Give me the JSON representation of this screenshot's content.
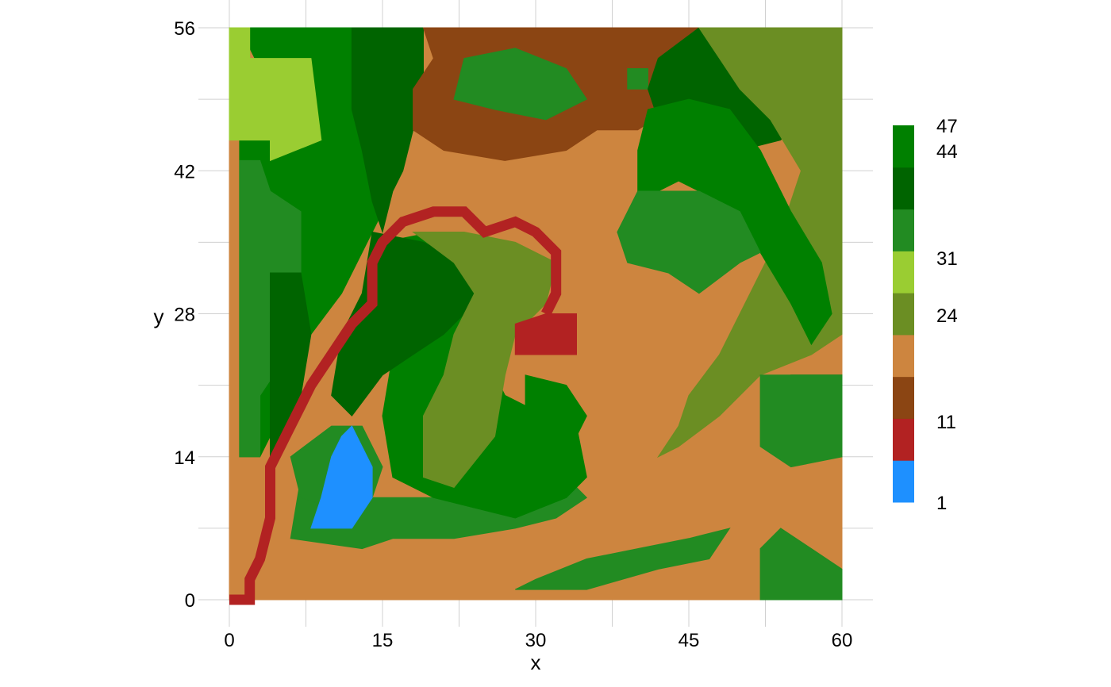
{
  "chart_data": {
    "type": "heatmap",
    "title": "",
    "xlabel": "x",
    "ylabel": "y",
    "xlim": [
      0,
      60
    ],
    "ylim": [
      0,
      56
    ],
    "x_ticks": [
      "0",
      "15",
      "30",
      "45",
      "60"
    ],
    "y_ticks": [
      "0",
      "14",
      "28",
      "42",
      "56"
    ],
    "grid": true,
    "legend_position": "right",
    "colorbar": {
      "tick_labels": [
        "1",
        "11",
        "24",
        "31",
        "44",
        "47"
      ],
      "bands": [
        {
          "color": "#1E90FF"
        },
        {
          "color": "#B22222"
        },
        {
          "color": "#8B4513"
        },
        {
          "color": "#CD853F"
        },
        {
          "color": "#6B8E23"
        },
        {
          "color": "#9ACD32"
        },
        {
          "color": "#228B22"
        },
        {
          "color": "#006400"
        },
        {
          "color": "#008000"
        }
      ]
    },
    "regions": [
      {
        "name": "farmland",
        "color": "#CD853F",
        "points": [
          [
            0,
            0
          ],
          [
            60,
            0
          ],
          [
            60,
            56
          ],
          [
            0,
            56
          ]
        ]
      },
      {
        "name": "forest-northwest",
        "color": "#008000",
        "points": [
          [
            1,
            56
          ],
          [
            19,
            56
          ],
          [
            18,
            48
          ],
          [
            15,
            38
          ],
          [
            11,
            30
          ],
          [
            8,
            26
          ],
          [
            5,
            20
          ],
          [
            4,
            16
          ],
          [
            3,
            14
          ],
          [
            1,
            14
          ],
          [
            1,
            45
          ],
          [
            4,
            50
          ]
        ]
      },
      {
        "name": "meadow-northwest",
        "color": "#9ACD32",
        "points": [
          [
            0,
            56
          ],
          [
            2,
            56
          ],
          [
            2,
            53
          ],
          [
            8,
            53
          ],
          [
            9,
            45
          ],
          [
            4,
            43
          ],
          [
            4,
            45
          ],
          [
            0,
            45
          ]
        ]
      },
      {
        "name": "woodland-west",
        "color": "#228B22",
        "points": [
          [
            1,
            43
          ],
          [
            3,
            43
          ],
          [
            4,
            40
          ],
          [
            7,
            38
          ],
          [
            7,
            30
          ],
          [
            6,
            28
          ],
          [
            5,
            23
          ],
          [
            3,
            20
          ],
          [
            3,
            14
          ],
          [
            1,
            14
          ],
          [
            1,
            28
          ]
        ]
      },
      {
        "name": "dense-forest-north",
        "color": "#006400",
        "points": [
          [
            12,
            56
          ],
          [
            19,
            56
          ],
          [
            19,
            50
          ],
          [
            18,
            46
          ],
          [
            17,
            42
          ],
          [
            16,
            40
          ],
          [
            15,
            36
          ],
          [
            14,
            39
          ],
          [
            13,
            44
          ],
          [
            12,
            48
          ]
        ]
      },
      {
        "name": "dense-forest-west",
        "color": "#006400",
        "points": [
          [
            4,
            32
          ],
          [
            7,
            32
          ],
          [
            8,
            26
          ],
          [
            7,
            20
          ],
          [
            6,
            16
          ],
          [
            4,
            14
          ],
          [
            4,
            20
          ],
          [
            4,
            26
          ]
        ]
      },
      {
        "name": "brown-hills-north",
        "color": "#8B4513",
        "points": [
          [
            19,
            56
          ],
          [
            46,
            56
          ],
          [
            45,
            50
          ],
          [
            43,
            48
          ],
          [
            40,
            46
          ],
          [
            36,
            46
          ],
          [
            33,
            44
          ],
          [
            27,
            43
          ],
          [
            21,
            44
          ],
          [
            18,
            46
          ],
          [
            18,
            50
          ],
          [
            20,
            53
          ]
        ]
      },
      {
        "name": "grove-north",
        "color": "#228B22",
        "points": [
          [
            23,
            53
          ],
          [
            28,
            54
          ],
          [
            33,
            52
          ],
          [
            35,
            49
          ],
          [
            31,
            47
          ],
          [
            26,
            48
          ],
          [
            22,
            49
          ]
        ]
      },
      {
        "name": "grove-north-small",
        "color": "#228B22",
        "points": [
          [
            39,
            52
          ],
          [
            41,
            52
          ],
          [
            41,
            50
          ],
          [
            39,
            50
          ]
        ]
      },
      {
        "name": "forest-northeast",
        "color": "#006400",
        "points": [
          [
            46,
            56
          ],
          [
            51,
            56
          ],
          [
            54,
            50
          ],
          [
            56,
            48
          ],
          [
            54,
            45
          ],
          [
            50,
            44
          ],
          [
            44,
            44
          ],
          [
            42,
            47
          ],
          [
            41,
            50
          ],
          [
            42,
            53
          ]
        ]
      },
      {
        "name": "olive-fields-east",
        "color": "#6B8E23",
        "points": [
          [
            46,
            56
          ],
          [
            60,
            56
          ],
          [
            60,
            26
          ],
          [
            57,
            24
          ],
          [
            52,
            22
          ],
          [
            48,
            18
          ],
          [
            44,
            15
          ],
          [
            42,
            14
          ],
          [
            44,
            17
          ],
          [
            45,
            20
          ],
          [
            48,
            24
          ],
          [
            51,
            30
          ],
          [
            54,
            36
          ],
          [
            56,
            42
          ],
          [
            53,
            47
          ],
          [
            50,
            50
          ],
          [
            48,
            53
          ]
        ]
      },
      {
        "name": "forest-east",
        "color": "#008000",
        "points": [
          [
            41,
            48
          ],
          [
            45,
            49
          ],
          [
            49,
            48
          ],
          [
            52,
            44
          ],
          [
            55,
            38
          ],
          [
            58,
            33
          ],
          [
            59,
            28
          ],
          [
            57,
            25
          ],
          [
            55,
            29
          ],
          [
            52,
            34
          ],
          [
            48,
            39
          ],
          [
            44,
            41
          ],
          [
            40,
            39
          ],
          [
            40,
            44
          ]
        ]
      },
      {
        "name": "woodland-east",
        "color": "#228B22",
        "points": [
          [
            40,
            40
          ],
          [
            46,
            40
          ],
          [
            50,
            38
          ],
          [
            52,
            34
          ],
          [
            50,
            33
          ],
          [
            46,
            30
          ],
          [
            43,
            32
          ],
          [
            39,
            33
          ],
          [
            38,
            36
          ]
        ]
      },
      {
        "name": "dense-forest-southeast",
        "color": "#006400",
        "points": [
          [
            55,
            22
          ],
          [
            60,
            22
          ],
          [
            60,
            14
          ],
          [
            56,
            14
          ],
          [
            54,
            16
          ],
          [
            55,
            18
          ]
        ]
      },
      {
        "name": "woodland-southeast",
        "color": "#228B22",
        "points": [
          [
            52,
            22
          ],
          [
            60,
            22
          ],
          [
            60,
            14
          ],
          [
            55,
            13
          ],
          [
            52,
            15
          ]
        ]
      },
      {
        "name": "woodland-south-strip",
        "color": "#228B22",
        "points": [
          [
            28,
            1
          ],
          [
            35,
            1
          ],
          [
            42,
            3
          ],
          [
            47,
            4
          ],
          [
            49,
            7
          ],
          [
            45,
            6
          ],
          [
            40,
            5
          ],
          [
            35,
            4
          ],
          [
            30,
            2
          ]
        ]
      },
      {
        "name": "woodland-southeast-corner",
        "color": "#228B22",
        "points": [
          [
            52,
            0
          ],
          [
            60,
            0
          ],
          [
            60,
            3
          ],
          [
            57,
            5
          ],
          [
            54,
            7
          ],
          [
            52,
            5
          ]
        ]
      },
      {
        "name": "woodland-south",
        "color": "#228B22",
        "points": [
          [
            6,
            6
          ],
          [
            13,
            5
          ],
          [
            16,
            6
          ],
          [
            22,
            6
          ],
          [
            28,
            7
          ],
          [
            32,
            8
          ],
          [
            35,
            10
          ],
          [
            33,
            12
          ],
          [
            27,
            10
          ],
          [
            20,
            10
          ],
          [
            14,
            10
          ],
          [
            10,
            14
          ],
          [
            7,
            12
          ]
        ]
      },
      {
        "name": "woodland-lake-rim",
        "color": "#228B22",
        "points": [
          [
            6,
            14
          ],
          [
            10,
            17
          ],
          [
            13,
            17
          ],
          [
            15,
            13
          ],
          [
            14,
            10
          ],
          [
            10,
            9
          ],
          [
            7,
            10
          ]
        ]
      },
      {
        "name": "lake",
        "color": "#1E90FF",
        "points": [
          [
            8,
            7
          ],
          [
            12,
            7
          ],
          [
            14,
            10
          ],
          [
            14,
            13
          ],
          [
            12,
            17
          ],
          [
            11,
            16
          ],
          [
            10,
            14
          ],
          [
            9,
            10
          ]
        ]
      },
      {
        "name": "forest-central",
        "color": "#008000",
        "points": [
          [
            15,
            35
          ],
          [
            20,
            36
          ],
          [
            23,
            34
          ],
          [
            24,
            30
          ],
          [
            25,
            24
          ],
          [
            27,
            20
          ],
          [
            31,
            18
          ],
          [
            34,
            17
          ],
          [
            35,
            12
          ],
          [
            33,
            10
          ],
          [
            28,
            8
          ],
          [
            24,
            9
          ],
          [
            20,
            10
          ],
          [
            16,
            12
          ],
          [
            15,
            18
          ],
          [
            16,
            24
          ],
          [
            17,
            30
          ]
        ]
      },
      {
        "name": "dense-forest-central",
        "color": "#006400",
        "points": [
          [
            14,
            36
          ],
          [
            19,
            35
          ],
          [
            23,
            33
          ],
          [
            25,
            30
          ],
          [
            21,
            26
          ],
          [
            18,
            24
          ],
          [
            15,
            22
          ],
          [
            12,
            18
          ],
          [
            10,
            20
          ],
          [
            11,
            26
          ],
          [
            13,
            30
          ]
        ]
      },
      {
        "name": "olive-fields-central",
        "color": "#6B8E23",
        "points": [
          [
            18,
            36
          ],
          [
            23,
            36
          ],
          [
            28,
            35
          ],
          [
            32,
            33
          ],
          [
            31,
            29
          ],
          [
            28,
            26
          ],
          [
            27,
            22
          ],
          [
            26,
            16
          ],
          [
            22,
            11
          ],
          [
            19,
            12
          ],
          [
            19,
            18
          ],
          [
            21,
            22
          ],
          [
            22,
            26
          ],
          [
            24,
            30
          ],
          [
            22,
            33
          ]
        ]
      },
      {
        "name": "forest-central-south",
        "color": "#008000",
        "points": [
          [
            29,
            22
          ],
          [
            33,
            21
          ],
          [
            35,
            18
          ],
          [
            34,
            16
          ],
          [
            31,
            16
          ],
          [
            29,
            19
          ]
        ]
      },
      {
        "name": "red-patch",
        "color": "#B22222",
        "points": [
          [
            28,
            24
          ],
          [
            34,
            24
          ],
          [
            34,
            28
          ],
          [
            31,
            28
          ],
          [
            28,
            27
          ]
        ]
      },
      {
        "name": "red-track-south",
        "color": "#B22222",
        "types": "path",
        "points": [
          [
            0,
            0
          ],
          [
            2,
            0
          ],
          [
            2,
            2
          ],
          [
            3,
            4
          ],
          [
            4,
            8
          ],
          [
            4,
            13
          ],
          [
            6,
            17
          ],
          [
            7,
            19
          ],
          [
            8,
            21
          ],
          [
            10,
            24
          ],
          [
            12,
            27
          ],
          [
            14,
            29
          ],
          [
            14,
            33
          ],
          [
            15,
            35
          ],
          [
            17,
            37
          ],
          [
            20,
            38
          ],
          [
            23,
            38
          ],
          [
            25,
            36
          ],
          [
            28,
            37
          ],
          [
            30,
            36
          ],
          [
            32,
            34
          ],
          [
            32,
            30
          ],
          [
            31,
            28
          ]
        ]
      }
    ]
  }
}
